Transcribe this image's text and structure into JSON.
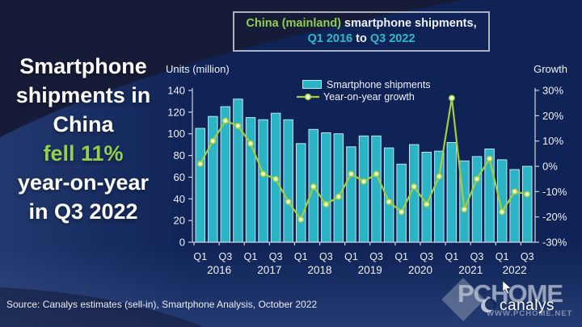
{
  "headline": {
    "line1": "Smartphone",
    "line2": "shipments in",
    "line3": "China",
    "line4": "fell 11%",
    "line5": "year-on-year",
    "line6": "in Q3 2022"
  },
  "title_box": {
    "region": "China (mainland)",
    "line1_rest": " smartphone shipments,",
    "start_quarter": "Q1 2016",
    "to_word": " to ",
    "end_quarter": "Q3 2022"
  },
  "source": "Source: Canalys estimates (sell-in), Smartphone Analysis, October 2022",
  "watermark": {
    "pchome": "PCHOME",
    "url": "WWW.PCHOME.NET",
    "canalys": "canalys"
  },
  "colors": {
    "background": "#0f2356",
    "bar_fill": "#2bb3c6",
    "bar_border": "#bfe3ef",
    "growth_line": "#a2cf3d",
    "marker_fill": "#edf5cd",
    "accent_green": "#92d050",
    "accent_cyan": "#2cb9cf",
    "axis_line": "#ccd4e2",
    "text": "#eef1f7"
  },
  "chart_data": {
    "type": "bar",
    "title": "China (mainland) smartphone shipments, Q1 2016 to Q3 2022",
    "categories": [
      "Q1 2016",
      "Q2 2016",
      "Q3 2016",
      "Q4 2016",
      "Q1 2017",
      "Q2 2017",
      "Q3 2017",
      "Q4 2017",
      "Q1 2018",
      "Q2 2018",
      "Q3 2018",
      "Q4 2018",
      "Q1 2019",
      "Q2 2019",
      "Q3 2019",
      "Q4 2019",
      "Q1 2020",
      "Q2 2020",
      "Q3 2020",
      "Q4 2020",
      "Q1 2021",
      "Q2 2021",
      "Q3 2021",
      "Q4 2021",
      "Q1 2022",
      "Q2 2022",
      "Q3 2022"
    ],
    "series": [
      {
        "name": "Smartphone shipments",
        "type": "bar",
        "unit": "million units",
        "axis": "left",
        "values": [
          105,
          116,
          125,
          132,
          115,
          113,
          119,
          113,
          91,
          104,
          101,
          100,
          88,
          98,
          98,
          87,
          72,
          90,
          83,
          84,
          92,
          75,
          79,
          86,
          76,
          67,
          70
        ]
      },
      {
        "name": "Year-on-year growth",
        "type": "line",
        "unit": "%",
        "axis": "right",
        "values": [
          1,
          10,
          18,
          16,
          9,
          -3,
          -5,
          -14,
          -21,
          -8,
          -15,
          -12,
          -3,
          -6,
          -3,
          -14,
          -18,
          -8,
          -15,
          -4,
          27,
          -17,
          -5,
          3,
          -18,
          -10,
          -11
        ]
      }
    ],
    "left_axis": {
      "label": "Units (million)",
      "min": 0,
      "max": 140,
      "tick_step": 20
    },
    "right_axis": {
      "label": "Growth",
      "min": -30,
      "max": 30,
      "tick_step": 10,
      "suffix": "%"
    },
    "x_axis": {
      "quarter_ticks": [
        "Q1",
        "Q3"
      ],
      "years": [
        "2016",
        "2017",
        "2018",
        "2019",
        "2020",
        "2021",
        "2022"
      ]
    },
    "grid": false,
    "legend_position": "top-center-inside"
  }
}
